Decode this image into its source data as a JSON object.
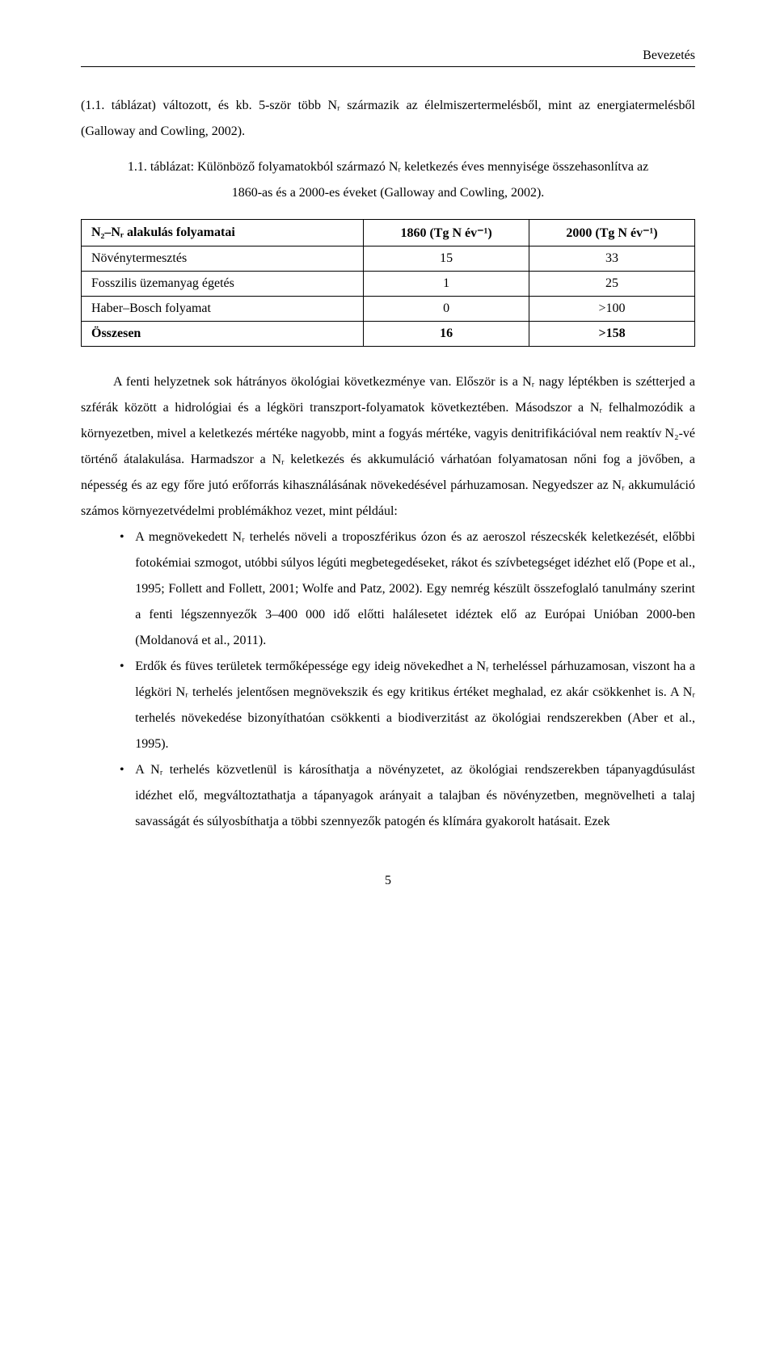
{
  "header": {
    "section": "Bevezetés"
  },
  "intro": {
    "text": "(1.1. táblázat) változott, és kb. 5-ször több Nᵣ származik az élelmiszertermelésből, mint az energiatermelésből (Galloway and Cowling, 2002)."
  },
  "table_caption": {
    "line1": "1.1. táblázat: Különböző folyamatokból származó Nᵣ keletkezés éves mennyisége összehasonlítva az",
    "line2": "1860-as és a 2000-es éveket (Galloway and Cowling, 2002)."
  },
  "table": {
    "columns": [
      "N₂–Nᵣ alakulás folyamatai",
      "1860 (Tg N év⁻¹)",
      "2000 (Tg N év⁻¹)"
    ],
    "rows": [
      [
        "Növénytermesztés",
        "15",
        "33"
      ],
      [
        "Fosszilis üzemanyag égetés",
        "1",
        "25"
      ],
      [
        "Haber–Bosch folyamat",
        "0",
        ">100"
      ],
      [
        "Összesen",
        "16",
        ">158"
      ]
    ],
    "bold_rows": [
      3
    ],
    "border_color": "#000000",
    "background_color": "#ffffff",
    "font_size_pt": 12,
    "col_widths_pct": [
      46,
      27,
      27
    ],
    "text_align": [
      "left",
      "center",
      "center"
    ]
  },
  "body": {
    "para": "A fenti helyzetnek sok hátrányos ökológiai következménye van. Először is a Nᵣ nagy léptékben is szétterjed a szférák között a hidrológiai és a légköri transzport-folyamatok következtében. Másodszor a Nᵣ felhalmozódik a környezetben, mivel a keletkezés mértéke nagyobb, mint a fogyás mértéke, vagyis denitrifikációval nem reaktív N₂-vé történő átalakulása. Harmadszor a Nᵣ keletkezés és akkumuláció várhatóan folyamatosan nőni fog a jövőben, a népesség és az egy főre jutó erőforrás kihasználásának növekedésével párhuzamosan. Negyedszer az Nᵣ akkumuláció számos környezetvédelmi problémákhoz vezet, mint például:"
  },
  "bullets": [
    "A megnövekedett Nᵣ terhelés növeli a troposzférikus ózon és az aeroszol részecskék keletkezését, előbbi fotokémiai szmogot, utóbbi súlyos légúti megbetegedéseket, rákot és szívbetegséget idézhet elő (Pope et al., 1995; Follett and Follett, 2001; Wolfe and Patz, 2002). Egy nemrég készült összefoglaló tanulmány szerint a fenti légszennyezők 3–400 000 idő előtti halálesetet idéztek elő az Európai Unióban 2000-ben (Moldanová et al., 2011).",
    "Erdők és füves területek termőképessége egy ideig növekedhet a Nᵣ terheléssel párhuzamosan, viszont ha a légköri Nᵣ terhelés jelentősen megnövekszik és egy kritikus értéket meghalad, ez akár csökkenhet is. A Nᵣ terhelés növekedése bizonyíthatóan csökkenti a biodiverzitást az ökológiai rendszerekben (Aber et al., 1995).",
    "A Nᵣ terhelés közvetlenül is károsíthatja a növényzetet, az ökológiai rendszerekben tápanyagdúsulást idézhet elő, megváltoztathatja a tápanyagok arányait a talajban és növényzetben, megnövelheti a talaj savasságát és súlyosbíthatja a többi szennyezők patogén és klímára gyakorolt hatásait. Ezek"
  ],
  "page_number": "5"
}
